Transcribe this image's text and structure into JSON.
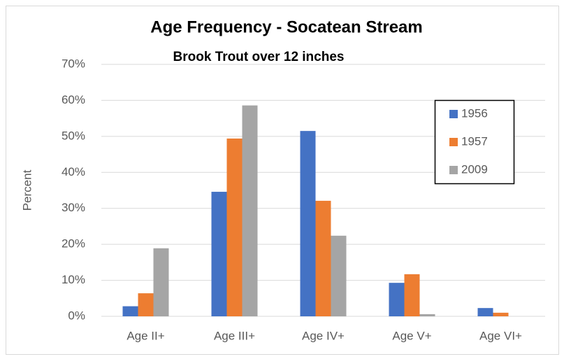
{
  "chart_data": {
    "type": "bar",
    "title": "Age Frequency - Socatean Stream",
    "subtitle": "Brook Trout over 12 inches",
    "y_label": "Percent",
    "categories": [
      "Age II+",
      "Age III+",
      "Age IV+",
      "Age V+",
      "Age VI+"
    ],
    "series": [
      {
        "name": "1956",
        "color": "#4472c4",
        "values": [
          2.8,
          34.6,
          51.5,
          9.3,
          2.3
        ]
      },
      {
        "name": "1957",
        "color": "#ed7d31",
        "values": [
          6.4,
          49.4,
          32.1,
          11.7,
          1.0
        ]
      },
      {
        "name": "2009",
        "color": "#a5a5a5",
        "values": [
          18.9,
          58.6,
          22.4,
          0.6,
          0
        ]
      }
    ],
    "ylim": [
      0,
      70
    ],
    "yticks": [
      {
        "value": 0,
        "label": "0%"
      },
      {
        "value": 10,
        "label": "10%"
      },
      {
        "value": 20,
        "label": "20%"
      },
      {
        "value": 30,
        "label": "30%"
      },
      {
        "value": 40,
        "label": "40%"
      },
      {
        "value": 50,
        "label": "50%"
      },
      {
        "value": 60,
        "label": "60%"
      },
      {
        "value": 70,
        "label": "70%"
      }
    ],
    "grid": true,
    "legend": "upper right"
  }
}
